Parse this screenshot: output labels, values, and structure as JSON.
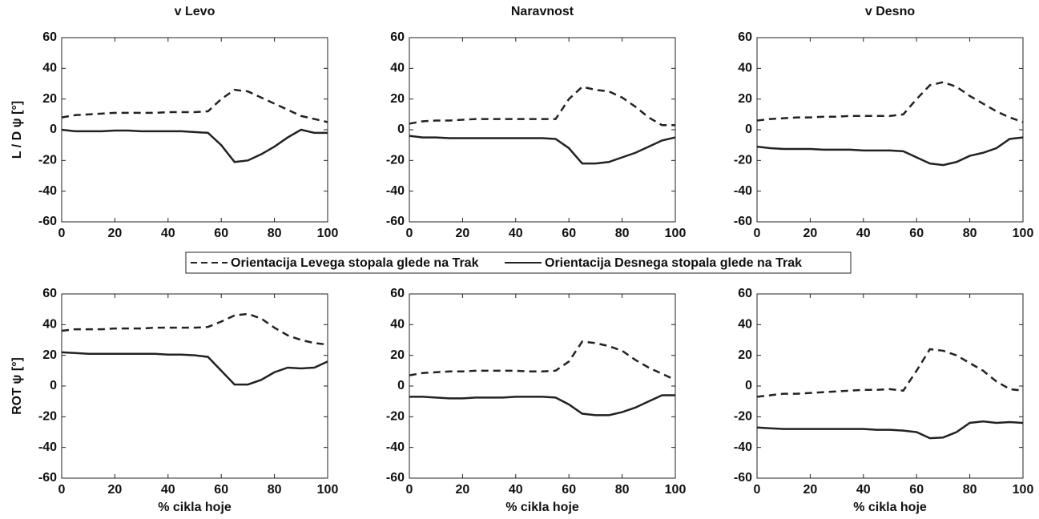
{
  "chart_data": [
    {
      "type": "line",
      "title": "v Levo",
      "ylabel": "L / D  ψ [°]",
      "x": [
        0,
        5,
        10,
        15,
        20,
        25,
        30,
        35,
        40,
        45,
        50,
        55,
        60,
        65,
        70,
        75,
        80,
        85,
        90,
        95,
        100
      ],
      "xlim": [
        0,
        100
      ],
      "xticks": [
        0,
        20,
        40,
        60,
        80,
        100
      ],
      "ylim": [
        -60,
        60
      ],
      "yticks": [
        -60,
        -40,
        -20,
        0,
        20,
        40,
        60
      ],
      "series": [
        {
          "name": "Orientacija Levega stopala glede na Trak",
          "color": "#222222",
          "style": "dashed",
          "values": [
            8,
            9.5,
            10,
            10.5,
            11,
            11,
            11,
            11,
            11.5,
            11.5,
            11.5,
            12,
            20,
            26,
            25,
            21,
            17,
            13,
            9,
            7,
            5
          ]
        },
        {
          "name": "Orientacija Desnega stopala glede na Trak",
          "color": "#222222",
          "style": "solid",
          "values": [
            0,
            -1,
            -1,
            -1,
            -0.5,
            -0.5,
            -1,
            -1,
            -1,
            -1,
            -1.5,
            -2,
            -10,
            -21,
            -20,
            -16,
            -11,
            -5,
            0,
            -2,
            -2
          ]
        }
      ]
    },
    {
      "type": "line",
      "title": "Naravnost",
      "x": [
        0,
        5,
        10,
        15,
        20,
        25,
        30,
        35,
        40,
        45,
        50,
        55,
        60,
        65,
        70,
        75,
        80,
        85,
        90,
        95,
        100
      ],
      "xlim": [
        0,
        100
      ],
      "xticks": [
        0,
        20,
        40,
        60,
        80,
        100
      ],
      "ylim": [
        -60,
        60
      ],
      "yticks": [
        -60,
        -40,
        -20,
        0,
        20,
        40,
        60
      ],
      "series": [
        {
          "color": "#222222",
          "style": "dashed",
          "values": [
            4,
            5.5,
            6,
            6,
            6.5,
            7,
            7,
            7,
            7,
            7,
            7,
            7,
            20,
            28,
            26,
            25,
            21,
            15,
            8,
            3,
            3
          ]
        },
        {
          "color": "#222222",
          "style": "solid",
          "values": [
            -4,
            -5,
            -5,
            -5.5,
            -5.5,
            -5.5,
            -5.5,
            -5.5,
            -5.5,
            -5.5,
            -5.5,
            -6,
            -12,
            -22,
            -22,
            -21,
            -18,
            -15,
            -11,
            -7,
            -5
          ]
        }
      ]
    },
    {
      "type": "line",
      "title": "v Desno",
      "x": [
        0,
        5,
        10,
        15,
        20,
        25,
        30,
        35,
        40,
        45,
        50,
        55,
        60,
        65,
        70,
        75,
        80,
        85,
        90,
        95,
        100
      ],
      "xlim": [
        0,
        100
      ],
      "xticks": [
        0,
        20,
        40,
        60,
        80,
        100
      ],
      "ylim": [
        -60,
        60
      ],
      "yticks": [
        -60,
        -40,
        -20,
        0,
        20,
        40,
        60
      ],
      "series": [
        {
          "color": "#222222",
          "style": "dashed",
          "values": [
            6,
            7,
            7.5,
            8,
            8,
            8.5,
            8.5,
            9,
            9,
            9,
            9,
            10,
            20,
            29,
            31,
            28,
            22,
            17,
            12,
            8,
            5
          ]
        },
        {
          "color": "#222222",
          "style": "solid",
          "values": [
            -11,
            -12,
            -12.5,
            -12.5,
            -12.5,
            -13,
            -13,
            -13,
            -13.5,
            -13.5,
            -13.5,
            -14,
            -18,
            -22,
            -23,
            -21,
            -17,
            -15,
            -12,
            -6,
            -5
          ]
        }
      ]
    },
    {
      "type": "line",
      "ylabel": "ROT  ψ [°]",
      "xlabel": "% cikla hoje",
      "x": [
        0,
        5,
        10,
        15,
        20,
        25,
        30,
        35,
        40,
        45,
        50,
        55,
        60,
        65,
        70,
        75,
        80,
        85,
        90,
        95,
        100
      ],
      "xlim": [
        0,
        100
      ],
      "xticks": [
        0,
        20,
        40,
        60,
        80,
        100
      ],
      "ylim": [
        -60,
        60
      ],
      "yticks": [
        -60,
        -40,
        -20,
        0,
        20,
        40,
        60
      ],
      "series": [
        {
          "color": "#222222",
          "style": "dashed",
          "values": [
            36,
            37,
            37,
            37,
            37.5,
            37.5,
            37.5,
            38,
            38,
            38,
            38,
            38.5,
            42,
            46,
            47,
            44,
            38,
            33,
            30,
            28,
            27
          ]
        },
        {
          "color": "#222222",
          "style": "solid",
          "values": [
            22,
            21.5,
            21,
            21,
            21,
            21,
            21,
            21,
            20.5,
            20.5,
            20,
            19,
            10,
            1,
            1,
            4,
            9,
            12,
            11.5,
            12,
            16
          ]
        }
      ]
    },
    {
      "type": "line",
      "xlabel": "% cikla hoje",
      "x": [
        0,
        5,
        10,
        15,
        20,
        25,
        30,
        35,
        40,
        45,
        50,
        55,
        60,
        65,
        70,
        75,
        80,
        85,
        90,
        95,
        100
      ],
      "xlim": [
        0,
        100
      ],
      "xticks": [
        0,
        20,
        40,
        60,
        80,
        100
      ],
      "ylim": [
        -60,
        60
      ],
      "yticks": [
        -60,
        -40,
        -20,
        0,
        20,
        40,
        60
      ],
      "series": [
        {
          "color": "#222222",
          "style": "dashed",
          "values": [
            7,
            8.5,
            9,
            9.5,
            9.5,
            10,
            10,
            10,
            10,
            9.5,
            9.5,
            10,
            16,
            29,
            28,
            26,
            23,
            17,
            12,
            8,
            4
          ]
        },
        {
          "color": "#222222",
          "style": "solid",
          "values": [
            -7,
            -7,
            -7.5,
            -8,
            -8,
            -7.5,
            -7.5,
            -7.5,
            -7,
            -7,
            -7,
            -7.5,
            -12,
            -18,
            -19,
            -19,
            -17,
            -14,
            -10,
            -6,
            -6
          ]
        }
      ]
    },
    {
      "type": "line",
      "xlabel": "% cikla hoje",
      "x": [
        0,
        5,
        10,
        15,
        20,
        25,
        30,
        35,
        40,
        45,
        50,
        55,
        60,
        65,
        70,
        75,
        80,
        85,
        90,
        95,
        100
      ],
      "xlim": [
        0,
        100
      ],
      "xticks": [
        0,
        20,
        40,
        60,
        80,
        100
      ],
      "ylim": [
        -60,
        60
      ],
      "yticks": [
        -60,
        -40,
        -20,
        0,
        20,
        40,
        60
      ],
      "series": [
        {
          "color": "#222222",
          "style": "dashed",
          "values": [
            -7,
            -6,
            -5,
            -5,
            -4.5,
            -4,
            -3.5,
            -3,
            -2.5,
            -2.5,
            -2,
            -3,
            10,
            24,
            23,
            20,
            15,
            10,
            3,
            -2,
            -3
          ]
        },
        {
          "color": "#222222",
          "style": "solid",
          "values": [
            -27,
            -27.5,
            -28,
            -28,
            -28,
            -28,
            -28,
            -28,
            -28,
            -28.5,
            -28.5,
            -29,
            -30,
            -34,
            -33.5,
            -30,
            -24,
            -23,
            -24,
            -23.5,
            -24
          ]
        }
      ]
    }
  ]
}
